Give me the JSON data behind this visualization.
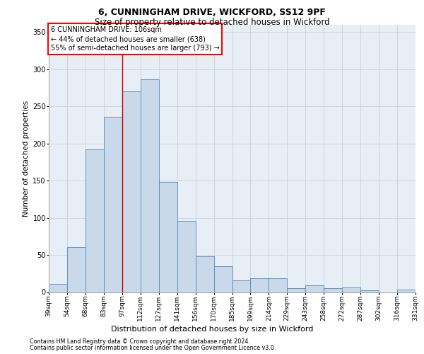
{
  "title1": "6, CUNNINGHAM DRIVE, WICKFORD, SS12 9PF",
  "title2": "Size of property relative to detached houses in Wickford",
  "xlabel": "Distribution of detached houses by size in Wickford",
  "ylabel": "Number of detached properties",
  "categories": [
    "39sqm",
    "54sqm",
    "68sqm",
    "83sqm",
    "97sqm",
    "112sqm",
    "127sqm",
    "141sqm",
    "156sqm",
    "170sqm",
    "185sqm",
    "199sqm",
    "214sqm",
    "229sqm",
    "243sqm",
    "258sqm",
    "272sqm",
    "287sqm",
    "302sqm",
    "316sqm",
    "331sqm"
  ],
  "values": [
    11,
    61,
    192,
    236,
    270,
    287,
    148,
    96,
    48,
    35,
    16,
    19,
    19,
    5,
    9,
    5,
    6,
    2,
    0,
    3
  ],
  "bar_color": "#c9d9ea",
  "bar_edge_color": "#5588bb",
  "grid_color": "#ccd5e2",
  "bg_color": "#e8eef5",
  "vline_color": "#cc0000",
  "ann_line1": "6 CUNNINGHAM DRIVE: 106sqm",
  "ann_line2": "← 44% of detached houses are smaller (638)",
  "ann_line3": "55% of semi-detached houses are larger (793) →",
  "footer1": "Contains HM Land Registry data © Crown copyright and database right 2024.",
  "footer2": "Contains public sector information licensed under the Open Government Licence v3.0.",
  "ylim": [
    0,
    360
  ],
  "yticks": [
    0,
    50,
    100,
    150,
    200,
    250,
    300,
    350
  ],
  "vline_pos": 3.5,
  "title1_fontsize": 9,
  "title2_fontsize": 8.5,
  "ylabel_fontsize": 7.5,
  "xlabel_fontsize": 8,
  "tick_fontsize": 6.5,
  "ann_fontsize": 7,
  "footer_fontsize": 5.8
}
